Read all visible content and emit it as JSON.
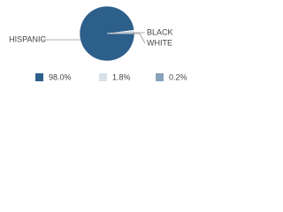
{
  "chart_data": {
    "type": "pie",
    "categories": [
      "HISPANIC",
      "BLACK",
      "WHITE"
    ],
    "values": [
      98.0,
      1.8,
      0.2
    ],
    "value_labels": [
      "98.0%",
      "1.8%",
      "0.2%"
    ],
    "colors": [
      "#2d5f8b",
      "#d5e0ea",
      "#88a2b9"
    ]
  }
}
